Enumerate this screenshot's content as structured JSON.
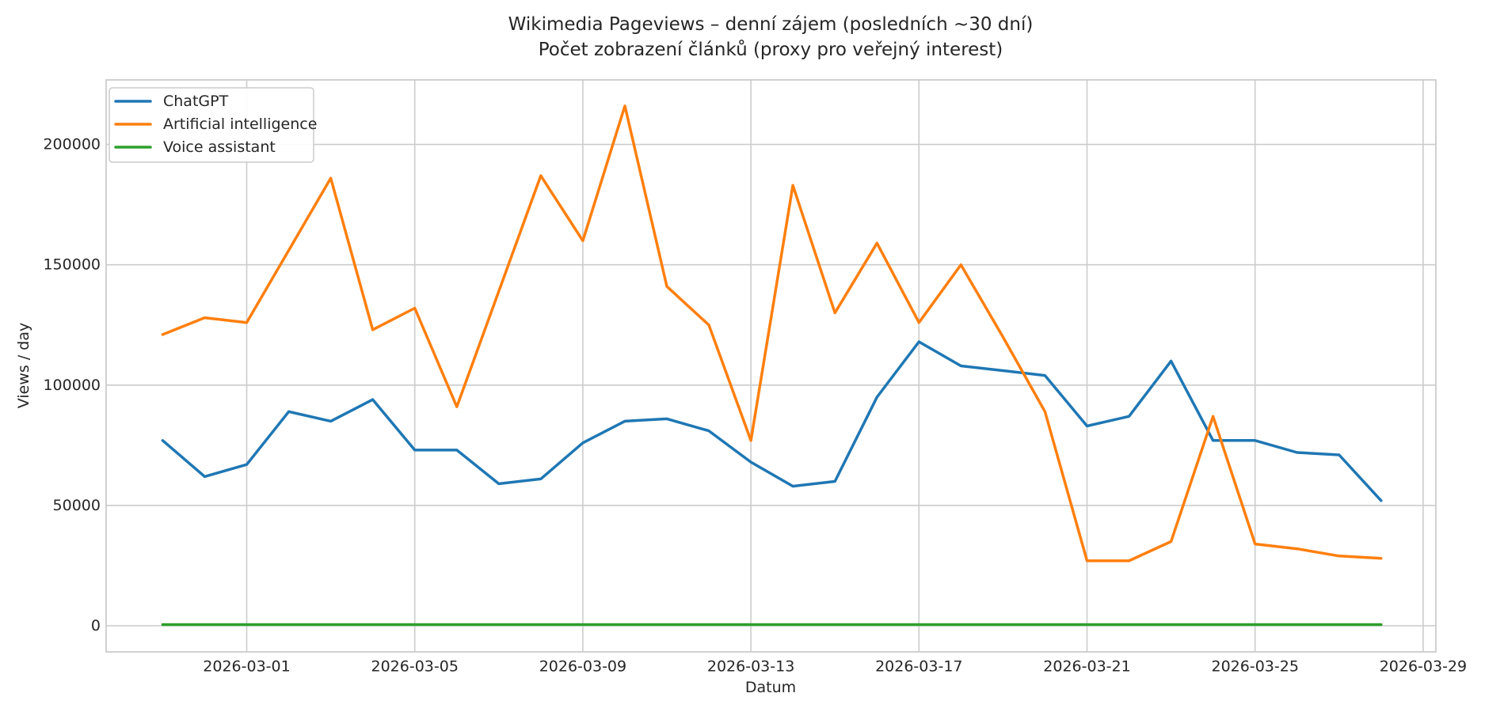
{
  "figure": {
    "title": "Wikimedia Pageviews – denní zájem (posledních ~30 dní)",
    "subtitle": "Počet zobrazení článků (proxy pro veřejný interest)",
    "xlabel": "Datum",
    "ylabel": "Views / day"
  },
  "colors": {
    "grid": "#cccccc",
    "spine": "#cccccc",
    "text": "#262626",
    "background": "#ffffff",
    "series_blue": "#1f77b4",
    "series_orange": "#ff7f0e",
    "series_green": "#2ca02c"
  },
  "chart_data": {
    "type": "line",
    "title": "Wikimedia Pageviews – denní zájem (posledních ~30 dní)",
    "subtitle": "Počet zobrazení článků (proxy pro veřejný interest)",
    "xlabel": "Datum",
    "ylabel": "Views / day",
    "grid": true,
    "legend_position": "upper left",
    "x": [
      "2026-02-27",
      "2026-02-28",
      "2026-03-01",
      "2026-03-02",
      "2026-03-03",
      "2026-03-04",
      "2026-03-05",
      "2026-03-06",
      "2026-03-07",
      "2026-03-08",
      "2026-03-09",
      "2026-03-10",
      "2026-03-11",
      "2026-03-12",
      "2026-03-13",
      "2026-03-14",
      "2026-03-15",
      "2026-03-16",
      "2026-03-17",
      "2026-03-18",
      "2026-03-19",
      "2026-03-20",
      "2026-03-21",
      "2026-03-22",
      "2026-03-23",
      "2026-03-24",
      "2026-03-25",
      "2026-03-26",
      "2026-03-27",
      "2026-03-28"
    ],
    "series": [
      {
        "name": "ChatGPT",
        "color": "#1f77b4",
        "values": [
          77000,
          62000,
          67000,
          89000,
          85000,
          94000,
          73000,
          73000,
          59000,
          61000,
          76000,
          85000,
          86000,
          81000,
          68000,
          58000,
          60000,
          95000,
          118000,
          108000,
          106000,
          104000,
          83000,
          87000,
          110000,
          77000,
          77000,
          72000,
          71000,
          52000
        ]
      },
      {
        "name": "Artificial intelligence",
        "color": "#ff7f0e",
        "values": [
          121000,
          128000,
          126000,
          156000,
          186000,
          123000,
          132000,
          91000,
          139000,
          187000,
          160000,
          216000,
          141000,
          125000,
          77000,
          183000,
          130000,
          159000,
          126000,
          150000,
          120000,
          89000,
          27000,
          27000,
          35000,
          87000,
          34000,
          32000,
          29000,
          28000
        ]
      },
      {
        "name": "Voice assistant",
        "color": "#2ca02c",
        "values": [
          500,
          500,
          500,
          500,
          500,
          500,
          500,
          500,
          500,
          500,
          500,
          500,
          500,
          500,
          500,
          500,
          500,
          500,
          500,
          500,
          500,
          500,
          500,
          500,
          500,
          500,
          500,
          500,
          500,
          500
        ]
      }
    ],
    "x_tick_labels": [
      "2026-03-01",
      "2026-03-05",
      "2026-03-09",
      "2026-03-13",
      "2026-03-17",
      "2026-03-21",
      "2026-03-25",
      "2026-03-29"
    ],
    "y_ticks": [
      0,
      50000,
      100000,
      150000,
      200000
    ],
    "y_tick_labels": [
      "0",
      "50000",
      "100000",
      "150000",
      "200000"
    ],
    "ylim": [
      -10800,
      226800
    ],
    "xlim": [
      "2026-02-26",
      "2026-03-29"
    ]
  }
}
